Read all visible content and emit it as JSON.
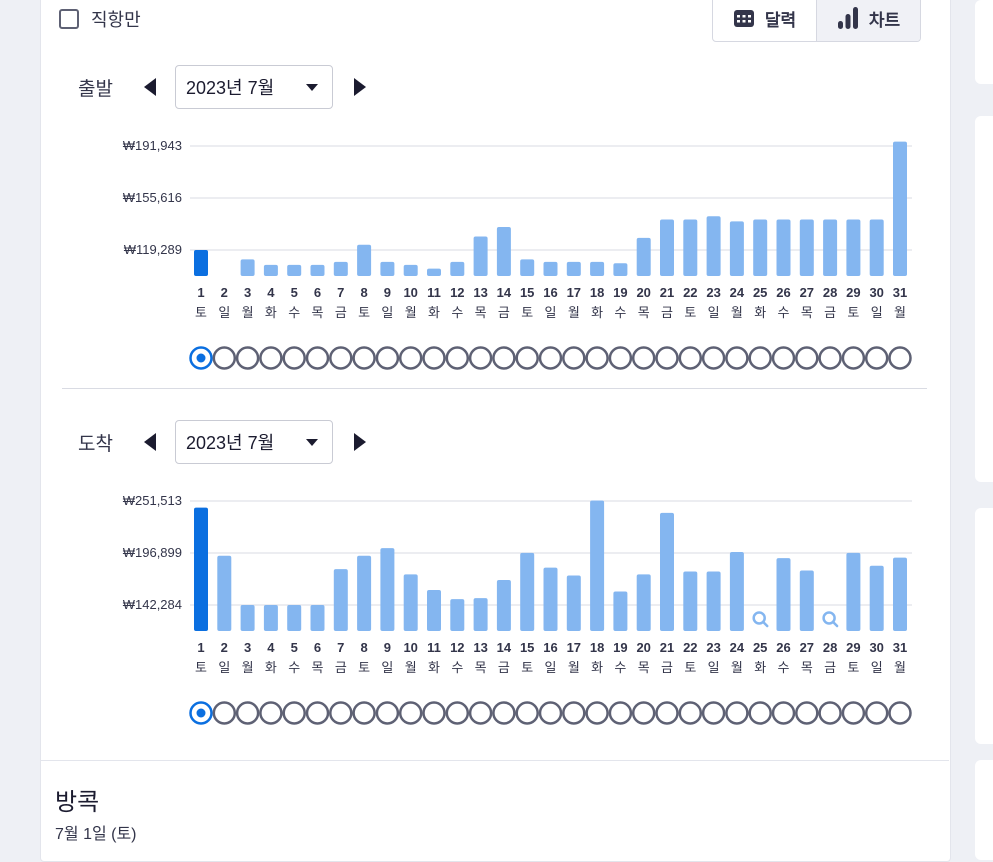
{
  "filters": {
    "direct_only_label": "직항만",
    "direct_only_checked": false
  },
  "view_toggle": {
    "calendar_label": "달력",
    "chart_label": "차트",
    "active": "chart"
  },
  "departure": {
    "label": "출발",
    "month": "2023년 7월",
    "selected_day": 1,
    "chart_data": {
      "type": "bar",
      "y_ticks": [
        "₩191,943",
        "₩155,616",
        "₩119,289"
      ],
      "y_tick_values": [
        191943,
        155616,
        119289
      ],
      "days": [
        1,
        2,
        3,
        4,
        5,
        6,
        7,
        8,
        9,
        10,
        11,
        12,
        13,
        14,
        15,
        16,
        17,
        18,
        19,
        20,
        21,
        22,
        23,
        24,
        25,
        26,
        27,
        28,
        29,
        30,
        31
      ],
      "weekdays": [
        "토",
        "일",
        "월",
        "화",
        "수",
        "목",
        "금",
        "토",
        "일",
        "월",
        "화",
        "수",
        "목",
        "금",
        "토",
        "일",
        "월",
        "화",
        "수",
        "목",
        "금",
        "토",
        "일",
        "월",
        "화",
        "수",
        "목",
        "금",
        "토",
        "일",
        "월"
      ],
      "values": [
        119289,
        101000,
        112700,
        108900,
        108900,
        108900,
        111000,
        123000,
        111000,
        108900,
        106300,
        111000,
        128700,
        135400,
        112700,
        111000,
        111000,
        111000,
        110000,
        127800,
        140600,
        140600,
        142900,
        139300,
        140600,
        140600,
        140600,
        140600,
        140600,
        140600,
        195000
      ],
      "missing": []
    }
  },
  "arrival": {
    "label": "도착",
    "month": "2023년 7월",
    "selected_day": 1,
    "chart_data": {
      "type": "bar",
      "y_ticks": [
        "₩251,513",
        "₩196,899",
        "₩142,284"
      ],
      "y_tick_values": [
        251513,
        196899,
        142284
      ],
      "days": [
        1,
        2,
        3,
        4,
        5,
        6,
        7,
        8,
        9,
        10,
        11,
        12,
        13,
        14,
        15,
        16,
        17,
        18,
        19,
        20,
        21,
        22,
        23,
        24,
        25,
        26,
        27,
        28,
        29,
        30,
        31
      ],
      "weekdays": [
        "토",
        "일",
        "월",
        "화",
        "수",
        "목",
        "금",
        "토",
        "일",
        "월",
        "화",
        "수",
        "목",
        "금",
        "토",
        "일",
        "월",
        "화",
        "수",
        "목",
        "금",
        "토",
        "일",
        "월",
        "화",
        "수",
        "목",
        "금",
        "토",
        "일",
        "월"
      ],
      "values": [
        244500,
        194000,
        142284,
        142284,
        142284,
        142284,
        180000,
        194000,
        202000,
        174500,
        158000,
        148500,
        149500,
        168500,
        197000,
        181500,
        173300,
        252000,
        156500,
        174500,
        239000,
        177500,
        177500,
        198000,
        null,
        191500,
        178500,
        null,
        197000,
        183500,
        192000
      ],
      "missing": [
        25,
        28
      ]
    }
  },
  "colors": {
    "bar": "#84b6f0",
    "bar_selected": "#0b6fe0",
    "grid": "#d9dbe3",
    "radio_border": "#5e6174",
    "radio_selected": "#0b6fe0",
    "text_dark": "#33354a"
  },
  "result": {
    "city": "방콕",
    "date": "7월 1일 (토)"
  }
}
